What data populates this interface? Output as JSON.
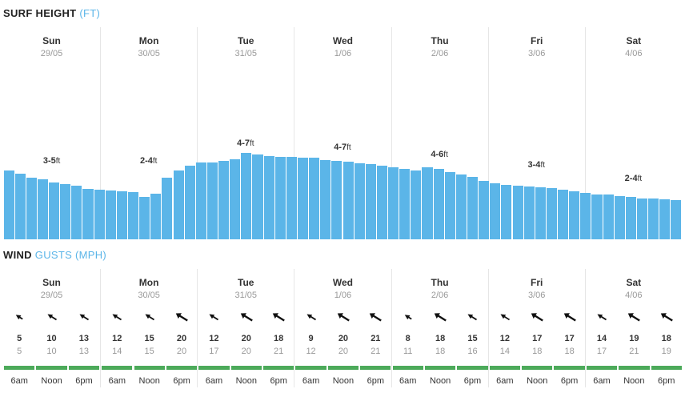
{
  "surf": {
    "title": "SURF HEIGHT",
    "unit": "(FT)"
  },
  "wind": {
    "title": "WIND",
    "unit_prefix": "GUSTS",
    "unit": "(MPH)"
  },
  "days": [
    {
      "name": "Sun",
      "date": "29/05",
      "surf_range": "3-5",
      "surf_unit": "ft",
      "slots": [
        {
          "time": "6am",
          "wind": "5",
          "gust": "5",
          "arrow_scale": "small"
        },
        {
          "time": "Noon",
          "wind": "10",
          "gust": "10",
          "arrow_scale": "medium"
        },
        {
          "time": "6pm",
          "wind": "13",
          "gust": "13",
          "arrow_scale": "medium"
        }
      ]
    },
    {
      "name": "Mon",
      "date": "30/05",
      "surf_range": "2-4",
      "surf_unit": "ft",
      "slots": [
        {
          "time": "6am",
          "wind": "12",
          "gust": "14",
          "arrow_scale": "medium"
        },
        {
          "time": "Noon",
          "wind": "15",
          "gust": "15",
          "arrow_scale": "medium"
        },
        {
          "time": "6pm",
          "wind": "20",
          "gust": "20",
          "arrow_scale": "large"
        }
      ]
    },
    {
      "name": "Tue",
      "date": "31/05",
      "surf_range": "4-7",
      "surf_unit": "ft",
      "slots": [
        {
          "time": "6am",
          "wind": "12",
          "gust": "17",
          "arrow_scale": "medium"
        },
        {
          "time": "Noon",
          "wind": "20",
          "gust": "20",
          "arrow_scale": "large"
        },
        {
          "time": "6pm",
          "wind": "18",
          "gust": "21",
          "arrow_scale": "large"
        }
      ]
    },
    {
      "name": "Wed",
      "date": "1/06",
      "surf_range": "4-7",
      "surf_unit": "ft",
      "slots": [
        {
          "time": "6am",
          "wind": "9",
          "gust": "12",
          "arrow_scale": "medium"
        },
        {
          "time": "Noon",
          "wind": "20",
          "gust": "20",
          "arrow_scale": "large"
        },
        {
          "time": "6pm",
          "wind": "21",
          "gust": "21",
          "arrow_scale": "large"
        }
      ]
    },
    {
      "name": "Thu",
      "date": "2/06",
      "surf_range": "4-6",
      "surf_unit": "ft",
      "slots": [
        {
          "time": "6am",
          "wind": "8",
          "gust": "11",
          "arrow_scale": "small"
        },
        {
          "time": "Noon",
          "wind": "18",
          "gust": "18",
          "arrow_scale": "large"
        },
        {
          "time": "6pm",
          "wind": "15",
          "gust": "16",
          "arrow_scale": "medium"
        }
      ]
    },
    {
      "name": "Fri",
      "date": "3/06",
      "surf_range": "3-4",
      "surf_unit": "ft",
      "slots": [
        {
          "time": "6am",
          "wind": "12",
          "gust": "14",
          "arrow_scale": "medium"
        },
        {
          "time": "Noon",
          "wind": "17",
          "gust": "18",
          "arrow_scale": "large"
        },
        {
          "time": "6pm",
          "wind": "17",
          "gust": "18",
          "arrow_scale": "large"
        }
      ]
    },
    {
      "name": "Sat",
      "date": "4/06",
      "surf_range": "2-4",
      "surf_unit": "ft",
      "slots": [
        {
          "time": "6am",
          "wind": "14",
          "gust": "17",
          "arrow_scale": "medium"
        },
        {
          "time": "Noon",
          "wind": "19",
          "gust": "21",
          "arrow_scale": "large"
        },
        {
          "time": "6pm",
          "wind": "18",
          "gust": "19",
          "arrow_scale": "large"
        }
      ]
    }
  ],
  "chart_data": {
    "type": "bar",
    "ylabel": "",
    "values_ft": [
      4.2,
      4.0,
      3.8,
      3.7,
      3.5,
      3.4,
      3.3,
      3.1,
      3.05,
      3.0,
      2.95,
      2.9,
      2.6,
      2.8,
      3.8,
      4.2,
      4.5,
      4.7,
      4.7,
      4.8,
      4.9,
      5.3,
      5.2,
      5.1,
      5.05,
      5.05,
      5.0,
      5.0,
      4.85,
      4.8,
      4.75,
      4.65,
      4.6,
      4.5,
      4.4,
      4.3,
      4.2,
      4.4,
      4.3,
      4.1,
      3.95,
      3.85,
      3.6,
      3.45,
      3.35,
      3.3,
      3.25,
      3.2,
      3.15,
      3.05,
      2.95,
      2.85,
      2.75,
      2.75,
      2.65,
      2.6,
      2.5,
      2.5,
      2.45,
      2.4
    ],
    "ylim": [
      0,
      13
    ]
  },
  "colors": {
    "bar": "#5bb5e8",
    "rating": "#4caa5a",
    "accent": "#5bb5e8"
  }
}
